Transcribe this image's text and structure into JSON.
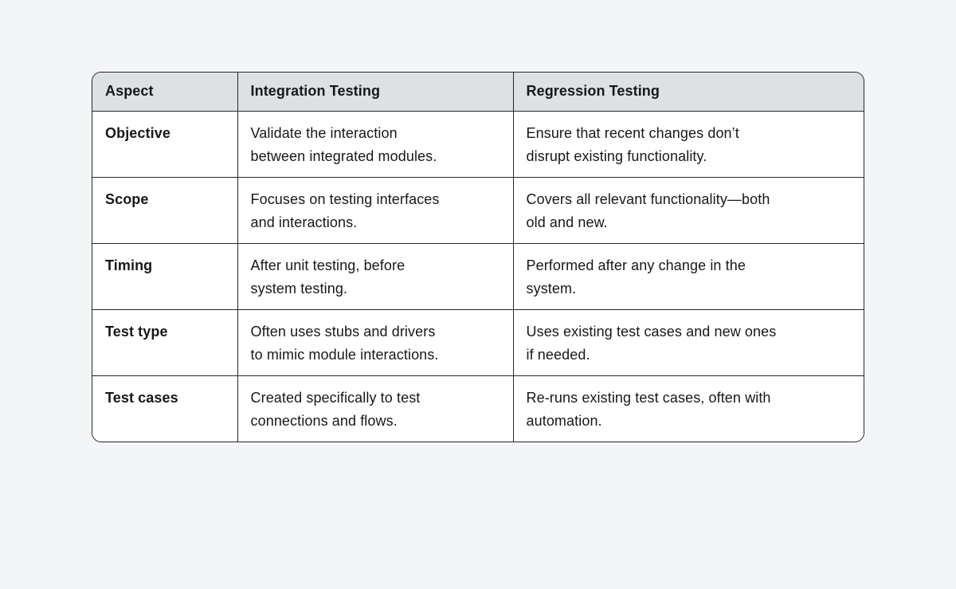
{
  "page": {
    "background_color": "#f4f5f6"
  },
  "table": {
    "header_bg_color": "#dde1e4",
    "body_bg_color": "#ffffff",
    "border_color": "#23282d",
    "text_color": "#16181b",
    "columns": [
      "Aspect",
      "Integration Testing",
      "Regression Testing"
    ],
    "rows": [
      [
        "Objective",
        "Validate the interaction\nbetween integrated modules.",
        "Ensure that recent changes don’t\ndisrupt existing functionality."
      ],
      [
        "Scope",
        "Focuses on testing interfaces\nand interactions.",
        "Covers all relevant functionality—both\nold and new."
      ],
      [
        "Timing",
        "After unit testing, before\nsystem testing.",
        "Performed after any change in the\nsystem."
      ],
      [
        "Test type",
        "Often uses stubs and drivers\nto mimic module interactions.",
        "Uses existing test cases and new ones\nif needed."
      ],
      [
        "Test cases",
        "Created specifically to test\nconnections and flows.",
        "Re-runs existing test cases, often with\nautomation."
      ]
    ]
  }
}
